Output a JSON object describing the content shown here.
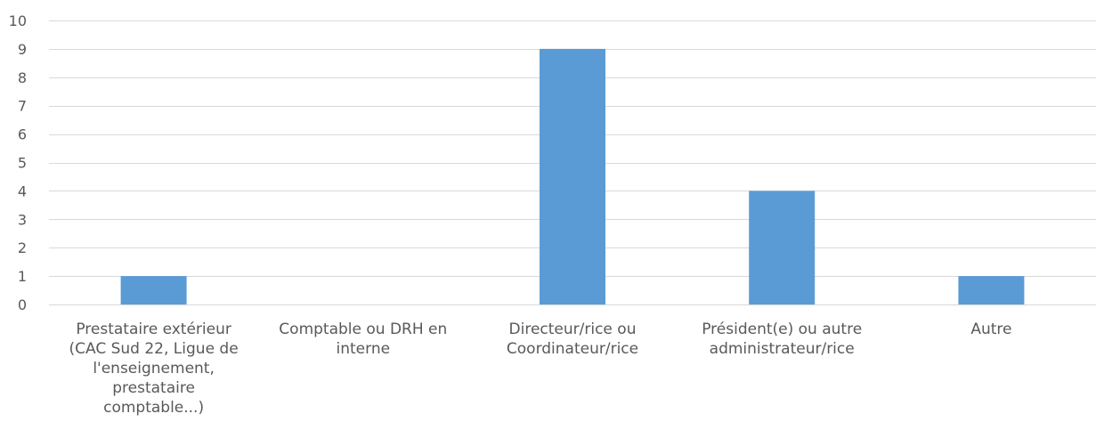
{
  "chart_data": {
    "type": "bar",
    "categories": [
      "Prestataire extérieur (CAC Sud 22, Ligue de l'enseignement, prestataire comptable...)",
      "Comptable ou DRH en interne",
      "Directeur/rice ou Coordinateur/rice",
      "Président(e) ou autre administrateur/rice",
      "Autre"
    ],
    "category_label_lines": [
      [
        "Prestataire extérieur",
        "(CAC Sud 22, Ligue de",
        "l'enseignement,",
        "prestataire",
        "comptable...)"
      ],
      [
        "Comptable ou DRH en",
        "interne"
      ],
      [
        "Directeur/rice ou",
        "Coordinateur/rice"
      ],
      [
        "Président(e) ou autre",
        "administrateur/rice"
      ],
      [
        "Autre"
      ]
    ],
    "values": [
      1,
      0,
      9,
      4,
      1
    ],
    "ylim": [
      0,
      10
    ],
    "yticks": [
      0,
      1,
      2,
      3,
      4,
      5,
      6,
      7,
      8,
      9,
      10
    ],
    "grid": true,
    "legend": "none",
    "colors": {
      "bar": "#5b9bd5",
      "grid": "#d9d9d9",
      "text": "#595959"
    }
  }
}
